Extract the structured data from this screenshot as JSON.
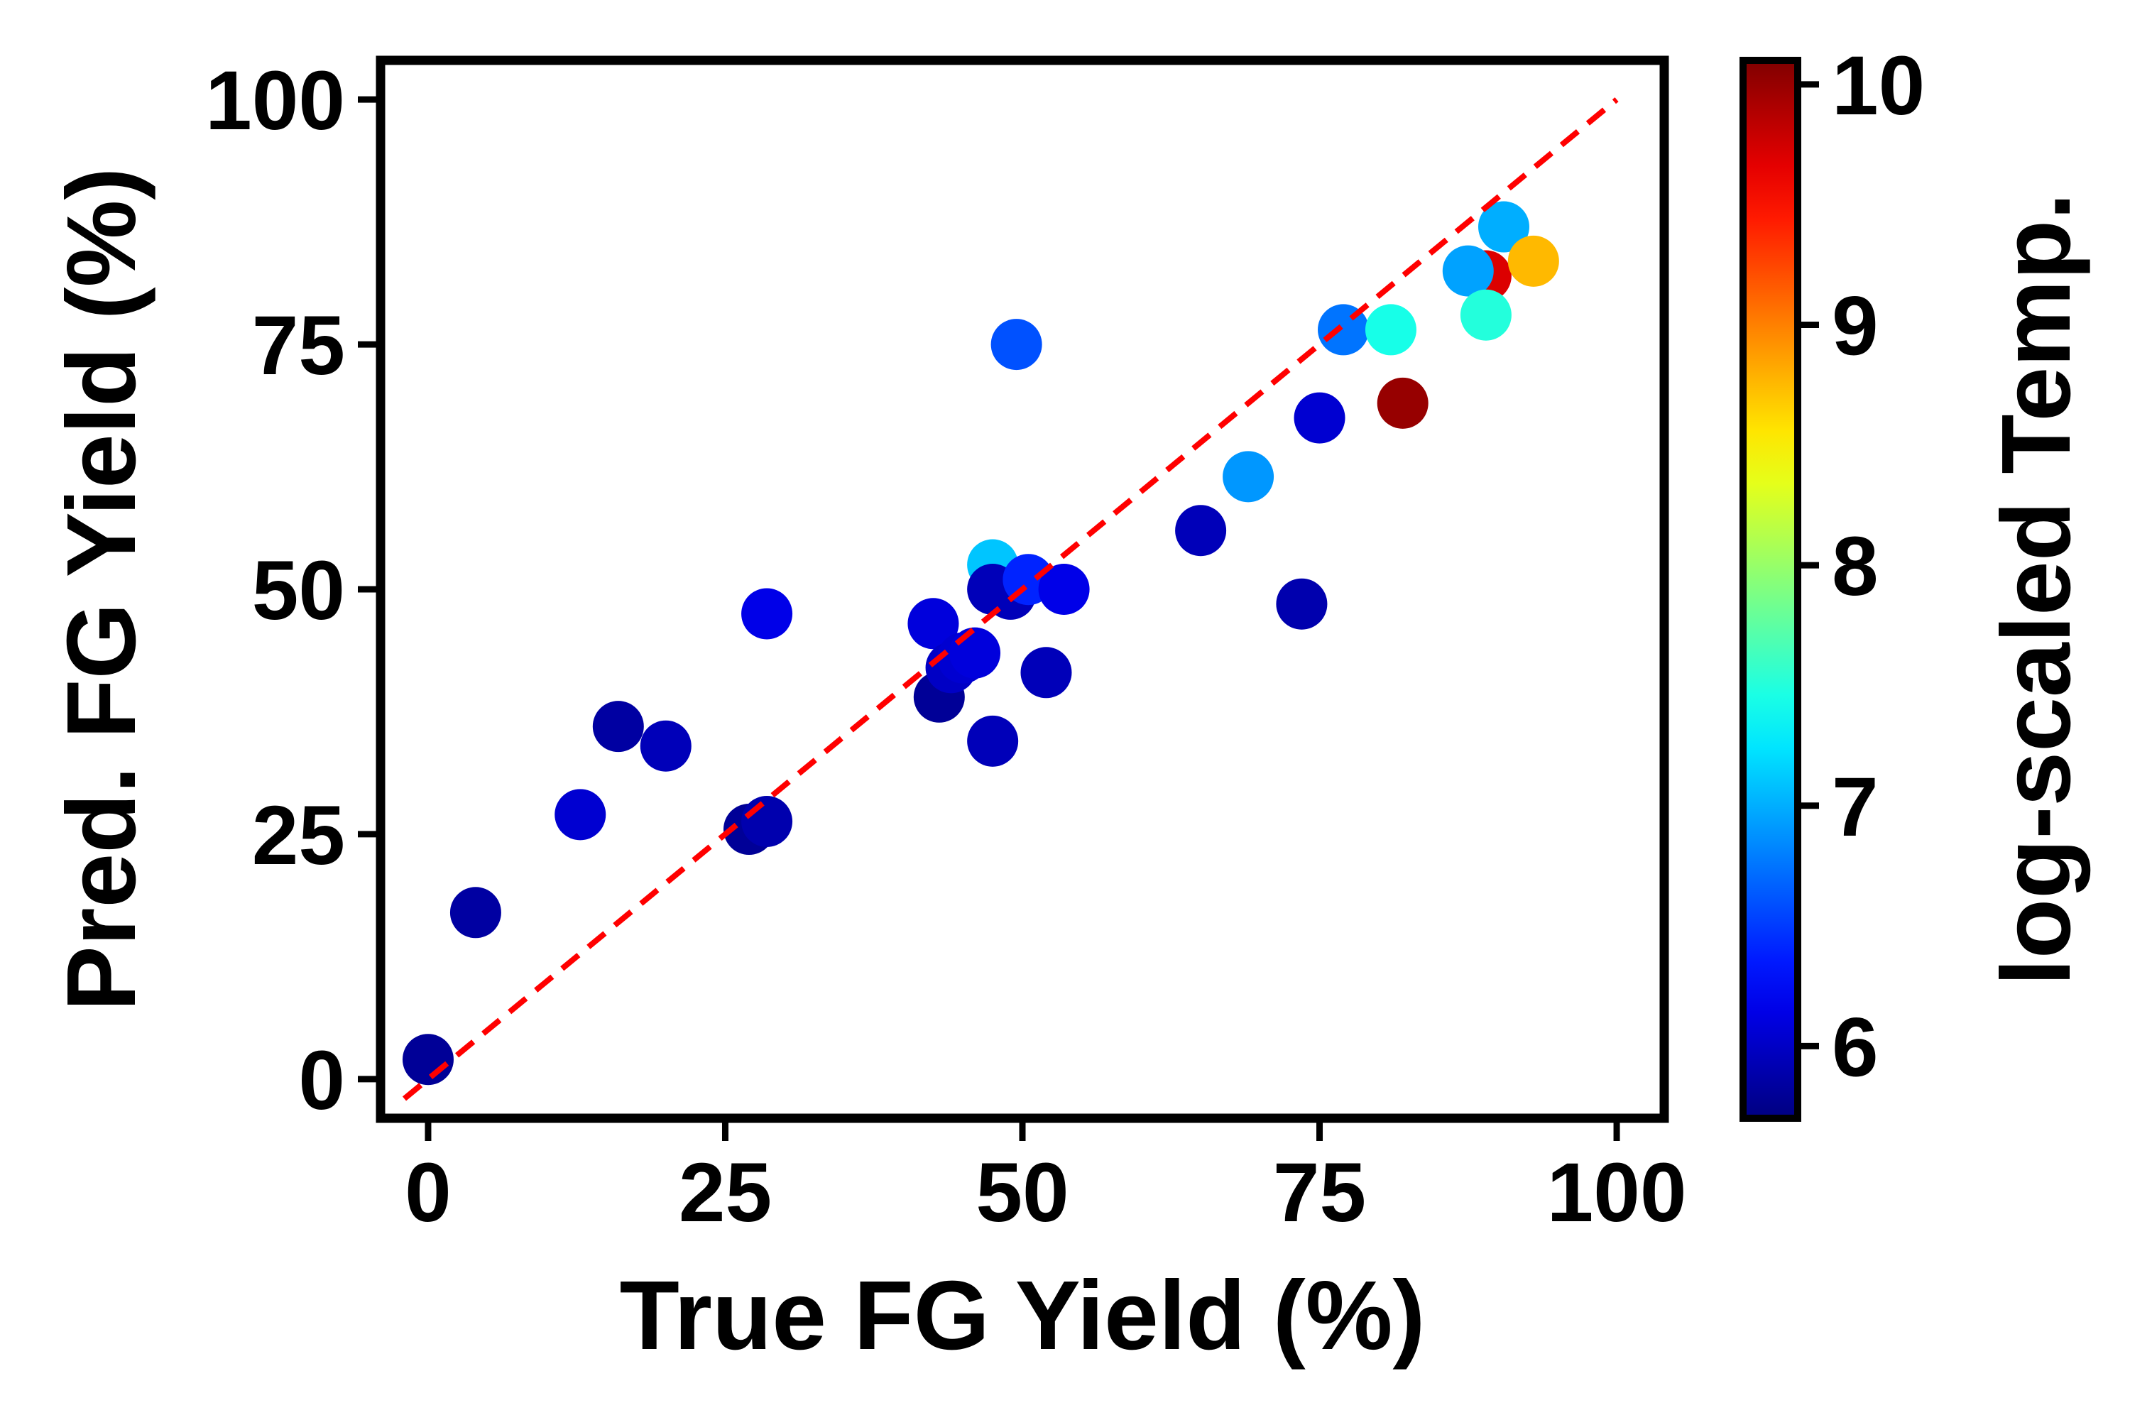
{
  "chart_data": {
    "type": "scatter",
    "title": "",
    "xlabel": "True FG Yield (%)",
    "ylabel": "Pred. FG Yield (%)",
    "xlim": [
      -4,
      104
    ],
    "ylim": [
      -4,
      104
    ],
    "xticks": [
      "0",
      "25",
      "50",
      "75",
      "100"
    ],
    "yticks": [
      "0",
      "25",
      "50",
      "75",
      "100"
    ],
    "xtick_values": [
      0,
      25,
      50,
      75,
      100
    ],
    "ytick_values": [
      0,
      25,
      50,
      75,
      100
    ],
    "grid": false,
    "reference_line": {
      "x": [
        -2,
        100
      ],
      "y": [
        -2,
        100
      ],
      "color": "#ff0000",
      "style": "dashed"
    },
    "colorbar": {
      "label": "log-scaled Temp.",
      "range": [
        5.7,
        10.1
      ],
      "ticks": [
        "6",
        "7",
        "8",
        "9",
        "10"
      ],
      "tick_values": [
        6,
        7,
        8,
        9,
        10
      ],
      "colormap": "jet"
    },
    "points": [
      {
        "x": 0,
        "y": 2,
        "c": 5.8
      },
      {
        "x": 4,
        "y": 17,
        "c": 5.85
      },
      {
        "x": 12.8,
        "y": 27,
        "c": 6.05
      },
      {
        "x": 16,
        "y": 36,
        "c": 5.85
      },
      {
        "x": 20,
        "y": 34,
        "c": 5.95
      },
      {
        "x": 27,
        "y": 25.5,
        "c": 5.8
      },
      {
        "x": 28.5,
        "y": 26.3,
        "c": 5.9
      },
      {
        "x": 28.5,
        "y": 47.5,
        "c": 6.15
      },
      {
        "x": 42.5,
        "y": 46.5,
        "c": 6.1
      },
      {
        "x": 43,
        "y": 39,
        "c": 5.8
      },
      {
        "x": 44,
        "y": 42,
        "c": 6.0
      },
      {
        "x": 45,
        "y": 43,
        "c": 6.05
      },
      {
        "x": 46,
        "y": 43.5,
        "c": 6.1
      },
      {
        "x": 47.5,
        "y": 34.5,
        "c": 5.95
      },
      {
        "x": 47.5,
        "y": 52.5,
        "c": 7.1
      },
      {
        "x": 47.5,
        "y": 50,
        "c": 5.95
      },
      {
        "x": 49,
        "y": 49.5,
        "c": 5.95
      },
      {
        "x": 50.5,
        "y": 51,
        "c": 6.4
      },
      {
        "x": 52,
        "y": 41.5,
        "c": 5.95
      },
      {
        "x": 53.5,
        "y": 50,
        "c": 6.15
      },
      {
        "x": 49.5,
        "y": 75,
        "c": 6.6
      },
      {
        "x": 65,
        "y": 56,
        "c": 5.95
      },
      {
        "x": 69,
        "y": 61.5,
        "c": 6.9
      },
      {
        "x": 73.5,
        "y": 48.5,
        "c": 5.9
      },
      {
        "x": 75,
        "y": 67.5,
        "c": 6.05
      },
      {
        "x": 77,
        "y": 76.5,
        "c": 6.75
      },
      {
        "x": 81,
        "y": 76.5,
        "c": 7.45
      },
      {
        "x": 82,
        "y": 69,
        "c": 10.0
      },
      {
        "x": 89,
        "y": 82,
        "c": 9.7
      },
      {
        "x": 87.5,
        "y": 82.5,
        "c": 6.95
      },
      {
        "x": 89,
        "y": 78,
        "c": 7.5
      },
      {
        "x": 90.5,
        "y": 87,
        "c": 7.0
      },
      {
        "x": 93,
        "y": 83.5,
        "c": 8.75
      }
    ]
  }
}
